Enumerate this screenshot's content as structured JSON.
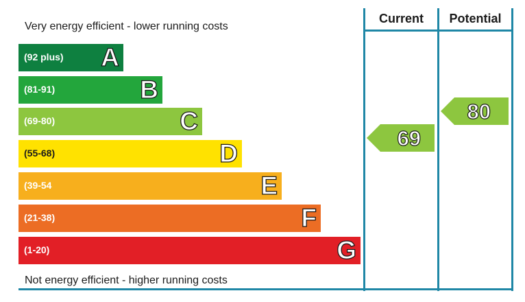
{
  "chart_data": {
    "type": "bar",
    "top_caption": "Very energy efficient - lower running costs",
    "bottom_caption": "Not energy efficient - higher running costs",
    "bands": [
      {
        "letter": "A",
        "range": "(92 plus)",
        "color": "#0e8040"
      },
      {
        "letter": "B",
        "range": "(81-91)",
        "color": "#23a63c"
      },
      {
        "letter": "C",
        "range": "(69-80)",
        "color": "#8dc63f"
      },
      {
        "letter": "D",
        "range": "(55-68)",
        "color": "#ffe200"
      },
      {
        "letter": "E",
        "range": "(39-54",
        "color": "#f7af1d"
      },
      {
        "letter": "F",
        "range": "(21-38)",
        "color": "#ec6d24"
      },
      {
        "letter": "G",
        "range": "(1-20)",
        "color": "#e21f26"
      }
    ],
    "columns": [
      {
        "label": "Current",
        "value": 69,
        "band": "C",
        "color": "#8dc63f"
      },
      {
        "label": "Potential",
        "value": 80,
        "band": "C",
        "color": "#8dc63f"
      }
    ],
    "frame_color": "#1f87a6"
  }
}
